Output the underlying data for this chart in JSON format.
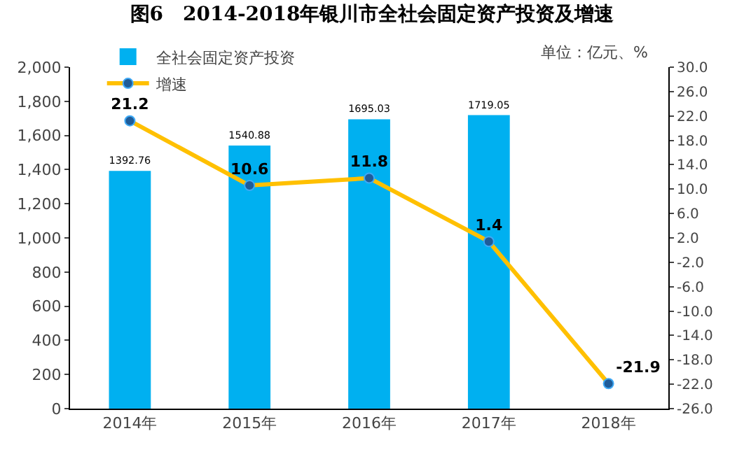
{
  "chart_data": {
    "type": "bar",
    "title": "图6　2014-2018年银川市全社会固定资产投资及增速",
    "categories": [
      "2014年",
      "2015年",
      "2016年",
      "2017年",
      "2018年"
    ],
    "series": [
      {
        "name": "全社会固定资产投资",
        "color": "#00b0f0",
        "values": [
          1392.76,
          1540.88,
          1695.03,
          1719.05,
          null
        ]
      },
      {
        "name": "增速",
        "type": "line",
        "axis": "y2",
        "color": "#ffc000",
        "marker": "circle",
        "values": [
          21.2,
          10.6,
          11.8,
          1.4,
          -21.9
        ]
      }
    ],
    "ylim": [
      0,
      2000
    ],
    "yticks": [
      {
        "value": 0,
        "label": "0"
      },
      {
        "value": 200,
        "label": "200"
      },
      {
        "value": 400,
        "label": "400"
      },
      {
        "value": 600,
        "label": "600"
      },
      {
        "value": 800,
        "label": "800"
      },
      {
        "value": 1000,
        "label": "1,000"
      },
      {
        "value": 1200,
        "label": "1,200"
      },
      {
        "value": 1400,
        "label": "1,400"
      },
      {
        "value": 1600,
        "label": "1,600"
      },
      {
        "value": 1800,
        "label": "1,800"
      },
      {
        "value": 2000,
        "label": "2,000"
      }
    ],
    "y2lim": [
      -26,
      30
    ],
    "y2ticks": [
      {
        "value": 30,
        "label": "30.0"
      },
      {
        "value": 26,
        "label": "26.0"
      },
      {
        "value": 22,
        "label": "22.0"
      },
      {
        "value": 18,
        "label": "18.0"
      },
      {
        "value": 14,
        "label": "14.0"
      },
      {
        "value": 10,
        "label": "10.0"
      },
      {
        "value": 6,
        "label": "6.0"
      },
      {
        "value": 2,
        "label": "2.0"
      },
      {
        "value": -2,
        "label": "-2.0"
      },
      {
        "value": -6,
        "label": "-6.0"
      },
      {
        "value": -10,
        "label": "-10.0"
      },
      {
        "value": -14,
        "label": "-14.0"
      },
      {
        "value": -18,
        "label": "-18.0"
      },
      {
        "value": -22,
        "label": "-22.0"
      },
      {
        "value": -26,
        "label": "-26.0"
      }
    ],
    "annotations": [
      "单位：亿元、%"
    ],
    "data_labels": true,
    "legend": "top left",
    "grid": false
  }
}
